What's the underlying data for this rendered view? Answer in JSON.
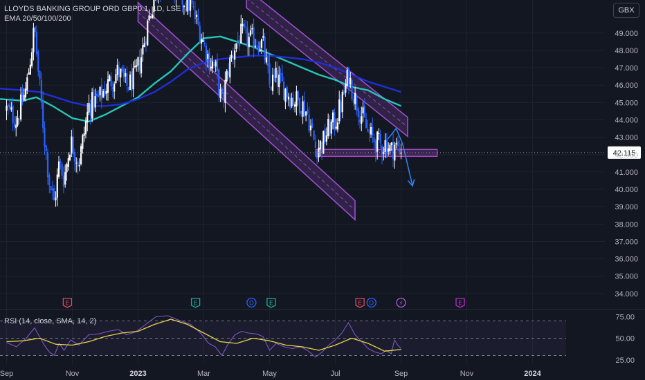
{
  "header": {
    "symbol": "LLOYDS BANKING GROUP ORD GBP0.1, 1D, LSE",
    "indicator": "EMA 20/50/100/200",
    "currency": "GBX"
  },
  "rsi_legend": "RSI (14, close, SMA, 14, 2)",
  "colors": {
    "background": "#131722",
    "up_candle": "#ffffff",
    "down_candle": "#2962ff",
    "ema_fast": "#26c6b8",
    "ema_slow": "#1e2fd6",
    "channel": "#9c4dcc",
    "arrow": "#2f80ed",
    "rsi": "#7e57c2",
    "rsi_ma": "#e6d54a"
  },
  "chart_data": [
    {
      "type": "candlestick",
      "title": "LLOYDS BANKING GROUP ORD GBP0.1, 1D, LSE",
      "currency": "GBX",
      "x_ticks": [
        "Sep",
        "Nov",
        "2023",
        "Mar",
        "May",
        "Jul",
        "Sep",
        "Nov",
        "2024"
      ],
      "x_tick_months": [
        0,
        2,
        4,
        6,
        8,
        10,
        12,
        14,
        16
      ],
      "x_range_months": [
        -0.2,
        18.2
      ],
      "data_end_month": 12.0,
      "y_ticks": [
        34.0,
        35.0,
        36.0,
        37.0,
        38.0,
        39.0,
        40.0,
        41.0,
        42.0,
        43.0,
        44.0,
        45.0,
        46.0,
        47.0,
        48.0,
        49.0
      ],
      "ylim": [
        33.2,
        50.9
      ],
      "last_price": "42.115",
      "close_path": [
        [
          0.0,
          44.6
        ],
        [
          0.3,
          44.0
        ],
        [
          0.6,
          45.8
        ],
        [
          0.85,
          49.3
        ],
        [
          1.0,
          46.0
        ],
        [
          1.15,
          43.0
        ],
        [
          1.3,
          40.5
        ],
        [
          1.45,
          39.2
        ],
        [
          1.6,
          41.5
        ],
        [
          1.75,
          40.6
        ],
        [
          1.95,
          42.8
        ],
        [
          2.2,
          41.5
        ],
        [
          2.5,
          44.8
        ],
        [
          2.8,
          45.2
        ],
        [
          3.1,
          46.1
        ],
        [
          3.4,
          46.8
        ],
        [
          3.65,
          45.9
        ],
        [
          3.9,
          46.4
        ],
        [
          4.1,
          47.7
        ],
        [
          4.3,
          49.6
        ],
        [
          4.55,
          51.5
        ],
        [
          4.9,
          52.0
        ],
        [
          5.3,
          51.0
        ],
        [
          5.6,
          50.6
        ],
        [
          5.9,
          49.0
        ],
        [
          6.15,
          47.5
        ],
        [
          6.35,
          47.0
        ],
        [
          6.55,
          44.9
        ],
        [
          6.75,
          47.0
        ],
        [
          6.95,
          48.3
        ],
        [
          7.15,
          48.9
        ],
        [
          7.35,
          48.6
        ],
        [
          7.6,
          48.6
        ],
        [
          7.8,
          48.3
        ],
        [
          8.0,
          46.0
        ],
        [
          8.2,
          46.4
        ],
        [
          8.45,
          45.8
        ],
        [
          8.7,
          45.2
        ],
        [
          8.95,
          45.0
        ],
        [
          9.15,
          44.4
        ],
        [
          9.4,
          42.4
        ],
        [
          9.6,
          42.6
        ],
        [
          9.8,
          43.5
        ],
        [
          10.0,
          43.9
        ],
        [
          10.2,
          45.0
        ],
        [
          10.4,
          46.6
        ],
        [
          10.6,
          45.2
        ],
        [
          10.8,
          44.3
        ],
        [
          11.0,
          43.2
        ],
        [
          11.2,
          42.8
        ],
        [
          11.4,
          42.5
        ],
        [
          11.55,
          42.7
        ],
        [
          11.7,
          42.2
        ],
        [
          11.8,
          42.6
        ],
        [
          11.9,
          42.3
        ],
        [
          12.0,
          42.115
        ]
      ],
      "ema_series": [
        {
          "label": "EMA fast",
          "values": [
            [
              -0.2,
              45.2
            ],
            [
              0.5,
              45.1
            ],
            [
              0.9,
              45.3
            ],
            [
              1.4,
              44.8
            ],
            [
              2.0,
              44.1
            ],
            [
              2.5,
              43.9
            ],
            [
              3.0,
              44.3
            ],
            [
              3.5,
              44.8
            ],
            [
              4.0,
              45.3
            ],
            [
              4.5,
              46.1
            ],
            [
              5.0,
              46.8
            ],
            [
              5.5,
              47.8
            ],
            [
              6.0,
              48.7
            ],
            [
              6.5,
              48.8
            ],
            [
              7.0,
              48.5
            ],
            [
              7.5,
              48.2
            ],
            [
              8.0,
              47.8
            ],
            [
              8.5,
              47.4
            ],
            [
              9.0,
              47.0
            ],
            [
              9.5,
              46.6
            ],
            [
              10.0,
              46.3
            ],
            [
              10.5,
              45.9
            ],
            [
              11.0,
              45.7
            ],
            [
              11.5,
              45.2
            ],
            [
              12.0,
              44.8
            ]
          ]
        },
        {
          "label": "EMA slow",
          "values": [
            [
              -0.2,
              45.8
            ],
            [
              0.5,
              45.7
            ],
            [
              1.0,
              45.6
            ],
            [
              1.5,
              45.3
            ],
            [
              2.0,
              45.0
            ],
            [
              2.5,
              44.8
            ],
            [
              3.0,
              44.8
            ],
            [
              3.5,
              44.9
            ],
            [
              4.0,
              45.2
            ],
            [
              4.5,
              45.6
            ],
            [
              5.0,
              46.2
            ],
            [
              5.5,
              46.9
            ],
            [
              6.0,
              47.3
            ],
            [
              6.5,
              47.5
            ],
            [
              7.0,
              47.6
            ],
            [
              7.5,
              47.7
            ],
            [
              8.0,
              47.7
            ],
            [
              8.5,
              47.6
            ],
            [
              9.0,
              47.5
            ],
            [
              9.5,
              47.3
            ],
            [
              10.0,
              47.0
            ],
            [
              10.5,
              46.6
            ],
            [
              11.0,
              46.2
            ],
            [
              11.5,
              45.9
            ],
            [
              12.0,
              45.6
            ]
          ]
        }
      ],
      "channel_lower": {
        "start": [
          4.0,
          50.2
        ],
        "end": [
          10.6,
          38.8
        ],
        "width": 1.1
      },
      "channel_upper": {
        "start": [
          7.3,
          51.0
        ],
        "end": [
          12.2,
          43.6
        ],
        "width": 1.1
      },
      "support_zone": {
        "x": [
          9.4,
          13.1
        ],
        "y": [
          41.9,
          42.3
        ]
      },
      "projection_arrow": [
        [
          11.6,
          42.9
        ],
        [
          11.85,
          43.5
        ],
        [
          12.05,
          42.6
        ],
        [
          12.35,
          40.2
        ]
      ],
      "events": [
        {
          "label": "E",
          "x": 1.85,
          "color": "#e04b5c"
        },
        {
          "label": "E",
          "x": 5.75,
          "color": "#22ab94"
        },
        {
          "label": "D",
          "x": 7.45,
          "color": "#2962ff"
        },
        {
          "label": "E",
          "x": 8.05,
          "color": "#22ab94"
        },
        {
          "label": "E",
          "x": 10.75,
          "color": "#e04b5c"
        },
        {
          "label": "D",
          "x": 11.1,
          "color": "#2962ff"
        },
        {
          "label": "⚡",
          "x": 12.0,
          "color": "#b05fd8"
        },
        {
          "label": "E",
          "x": 13.8,
          "color": "#c026d3"
        }
      ]
    },
    {
      "type": "line",
      "title": "RSI (14, close, SMA, 14, 2)",
      "y_ticks": [
        25.0,
        50.0,
        75.0
      ],
      "ylim": [
        20,
        80
      ],
      "band": [
        30,
        70
      ],
      "series": [
        {
          "values": [
            [
              0.0,
              45
            ],
            [
              0.3,
              40
            ],
            [
              0.6,
              50
            ],
            [
              0.85,
              62
            ],
            [
              1.0,
              52
            ],
            [
              1.15,
              42
            ],
            [
              1.3,
              34
            ],
            [
              1.45,
              30
            ],
            [
              1.6,
              44
            ],
            [
              1.75,
              36
            ],
            [
              1.95,
              48
            ],
            [
              2.2,
              42
            ],
            [
              2.5,
              54
            ],
            [
              2.8,
              55
            ],
            [
              3.1,
              58
            ],
            [
              3.4,
              60
            ],
            [
              3.65,
              54
            ],
            [
              3.9,
              57
            ],
            [
              4.1,
              62
            ],
            [
              4.3,
              68
            ],
            [
              4.55,
              75
            ],
            [
              4.9,
              76
            ],
            [
              5.3,
              70
            ],
            [
              5.6,
              66
            ],
            [
              5.9,
              56
            ],
            [
              6.15,
              44
            ],
            [
              6.35,
              40
            ],
            [
              6.55,
              30
            ],
            [
              6.75,
              44
            ],
            [
              6.95,
              54
            ],
            [
              7.15,
              58
            ],
            [
              7.35,
              56
            ],
            [
              7.6,
              55
            ],
            [
              7.8,
              52
            ],
            [
              8.0,
              36
            ],
            [
              8.2,
              44
            ],
            [
              8.45,
              40
            ],
            [
              8.7,
              38
            ],
            [
              8.95,
              40
            ],
            [
              9.15,
              36
            ],
            [
              9.4,
              28
            ],
            [
              9.6,
              34
            ],
            [
              9.8,
              42
            ],
            [
              10.0,
              48
            ],
            [
              10.2,
              56
            ],
            [
              10.4,
              68
            ],
            [
              10.6,
              54
            ],
            [
              10.8,
              46
            ],
            [
              11.0,
              38
            ],
            [
              11.2,
              34
            ],
            [
              11.4,
              32
            ],
            [
              11.55,
              36
            ],
            [
              11.7,
              32
            ],
            [
              11.8,
              48
            ],
            [
              11.9,
              42
            ],
            [
              12.0,
              38
            ]
          ]
        },
        {
          "values": [
            [
              0.0,
              46
            ],
            [
              0.5,
              47
            ],
            [
              1.0,
              50
            ],
            [
              1.5,
              43
            ],
            [
              2.0,
              42
            ],
            [
              2.5,
              46
            ],
            [
              3.0,
              52
            ],
            [
              3.5,
              56
            ],
            [
              4.0,
              58
            ],
            [
              4.5,
              66
            ],
            [
              5.0,
              72
            ],
            [
              5.5,
              66
            ],
            [
              6.0,
              56
            ],
            [
              6.5,
              46
            ],
            [
              7.0,
              44
            ],
            [
              7.5,
              50
            ],
            [
              8.0,
              47
            ],
            [
              8.5,
              42
            ],
            [
              9.0,
              40
            ],
            [
              9.5,
              36
            ],
            [
              10.0,
              42
            ],
            [
              10.5,
              50
            ],
            [
              11.0,
              44
            ],
            [
              11.5,
              35
            ],
            [
              12.0,
              37
            ]
          ]
        }
      ]
    }
  ]
}
